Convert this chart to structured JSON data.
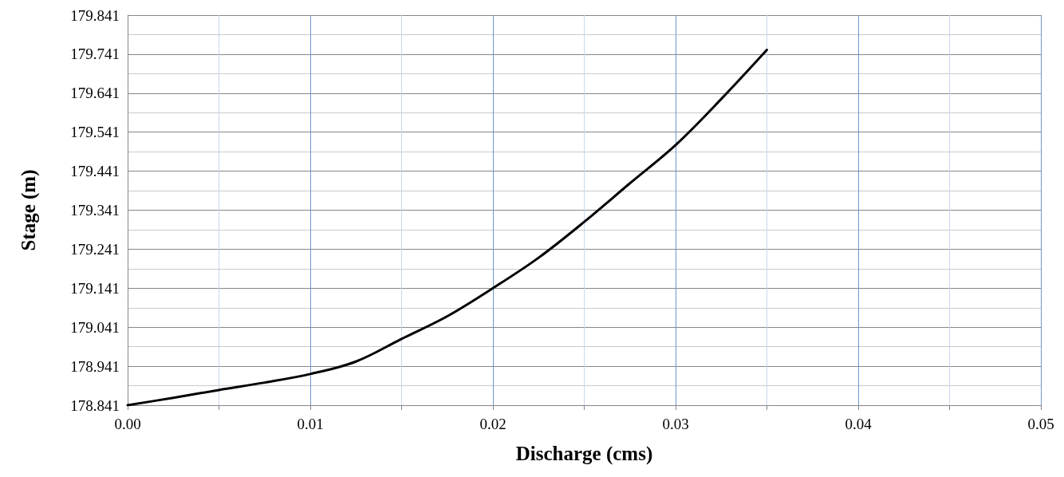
{
  "chart_data": {
    "type": "line",
    "xlabel": "Discharge (cms)",
    "ylabel": "Stage (m)",
    "x": [
      0,
      0.0025,
      0.005,
      0.0075,
      0.01,
      0.0125,
      0.015,
      0.0175,
      0.02,
      0.0225,
      0.025,
      0.0275,
      0.03,
      0.0325,
      0.035
    ],
    "series": [
      {
        "color": "#000000",
        "values": [
          178.841,
          178.86,
          178.88,
          178.899,
          178.921,
          178.953,
          179.011,
          179.069,
          179.141,
          179.219,
          179.311,
          179.41,
          179.508,
          179.626,
          179.752
        ]
      }
    ],
    "xlim": [
      0,
      0.05
    ],
    "xticks": [
      {
        "value": 0,
        "label": "0.00"
      },
      {
        "value": 0.005,
        "label": null
      },
      {
        "value": 0.01,
        "label": "0.01"
      },
      {
        "value": 0.015,
        "label": null
      },
      {
        "value": 0.02,
        "label": "0.02"
      },
      {
        "value": 0.025,
        "label": null
      },
      {
        "value": 0.03,
        "label": "0.03"
      },
      {
        "value": 0.035,
        "label": null
      },
      {
        "value": 0.04,
        "label": "0.04"
      },
      {
        "value": 0.045,
        "label": null
      },
      {
        "value": 0.05,
        "label": "0.05"
      }
    ],
    "ylim": [
      178.841,
      179.841
    ],
    "yticks": [
      178.841,
      {
        "value": 178.891,
        "label": null
      },
      178.941,
      {
        "value": 178.991,
        "label": null
      },
      179.041,
      {
        "value": 179.091,
        "label": null
      },
      179.141,
      {
        "value": 179.191,
        "label": null
      },
      179.241,
      {
        "value": 179.291,
        "label": null
      },
      179.341,
      {
        "value": 179.391,
        "label": null
      },
      179.441,
      {
        "value": 179.491,
        "label": null
      },
      179.541,
      {
        "value": 179.591,
        "label": null
      },
      179.641,
      {
        "value": 179.691,
        "label": null
      },
      179.741,
      {
        "value": 179.791,
        "label": null
      },
      179.841
    ],
    "grid": true,
    "marker": "none"
  }
}
